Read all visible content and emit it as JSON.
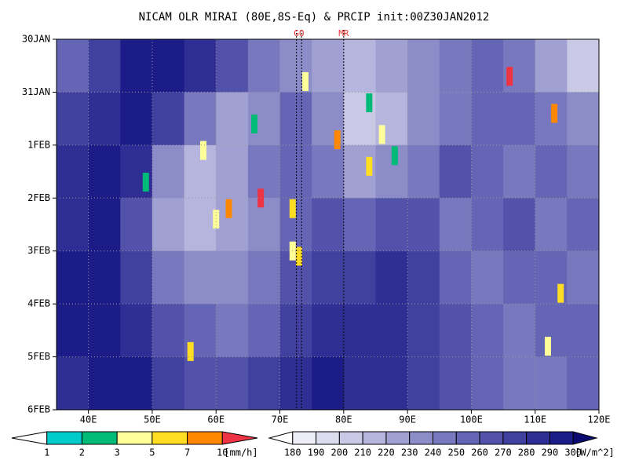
{
  "chart_data": {
    "type": "hovmoller",
    "title": "NICAM OLR MIRAI (80E,8S-Eq) & PRCIP init:00Z30JAN2012",
    "xlim": [
      35,
      120
    ],
    "ylim": [
      0,
      7
    ],
    "xticks": [
      {
        "value": 40,
        "label": "40E"
      },
      {
        "value": 50,
        "label": "50E"
      },
      {
        "value": 60,
        "label": "60E"
      },
      {
        "value": 70,
        "label": "70E"
      },
      {
        "value": 80,
        "label": "80E"
      },
      {
        "value": 90,
        "label": "90E"
      },
      {
        "value": 100,
        "label": "100E"
      },
      {
        "value": 110,
        "label": "110E"
      },
      {
        "value": 120,
        "label": "120E"
      }
    ],
    "yticks": [
      {
        "value": 0,
        "label": "30JAN"
      },
      {
        "value": 1,
        "label": "31JAN"
      },
      {
        "value": 2,
        "label": "1FEB"
      },
      {
        "value": 3,
        "label": "2FEB"
      },
      {
        "value": 4,
        "label": "3FEB"
      },
      {
        "value": 5,
        "label": "4FEB"
      },
      {
        "value": 6,
        "label": "5FEB"
      },
      {
        "value": 7,
        "label": "6FEB"
      }
    ],
    "grid": true,
    "olr": {
      "x_edges": [
        35,
        40,
        45,
        50,
        55,
        60,
        65,
        70,
        75,
        80,
        85,
        90,
        95,
        100,
        105,
        110,
        115,
        120
      ],
      "t_edges": [
        0,
        1,
        2,
        3,
        4,
        5,
        6,
        7
      ],
      "values": [
        [
          250,
          270,
          290,
          290,
          280,
          260,
          240,
          230,
          220,
          210,
          220,
          230,
          240,
          250,
          240,
          220,
          200
        ],
        [
          270,
          280,
          290,
          270,
          240,
          220,
          230,
          250,
          230,
          200,
          210,
          230,
          240,
          250,
          250,
          240,
          230
        ],
        [
          280,
          290,
          280,
          230,
          210,
          220,
          240,
          250,
          240,
          220,
          230,
          240,
          260,
          250,
          240,
          250,
          240
        ],
        [
          280,
          290,
          260,
          220,
          210,
          220,
          230,
          250,
          260,
          250,
          260,
          260,
          240,
          250,
          260,
          240,
          250
        ],
        [
          290,
          290,
          270,
          240,
          230,
          230,
          240,
          260,
          270,
          270,
          280,
          270,
          250,
          240,
          250,
          250,
          240
        ],
        [
          290,
          290,
          280,
          260,
          250,
          240,
          250,
          270,
          280,
          280,
          280,
          270,
          260,
          250,
          240,
          250,
          250
        ],
        [
          280,
          290,
          290,
          270,
          260,
          260,
          270,
          280,
          290,
          280,
          280,
          270,
          260,
          250,
          240,
          240,
          250
        ]
      ]
    },
    "precip": {
      "x": [
        62,
        67,
        72,
        73,
        74,
        79,
        84,
        86,
        88,
        106,
        113,
        56,
        60,
        49,
        72,
        84,
        66,
        112,
        114,
        58
      ],
      "t": [
        3.2,
        3.0,
        3.2,
        4.1,
        0.8,
        1.9,
        2.4,
        1.8,
        2.2,
        0.7,
        1.4,
        5.9,
        3.4,
        2.7,
        4.0,
        1.2,
        1.6,
        5.8,
        4.8,
        2.1
      ],
      "values": [
        7,
        10,
        5,
        5,
        3,
        7,
        5,
        3,
        2,
        10,
        7,
        5,
        3,
        2,
        3,
        2,
        2,
        3,
        5,
        3
      ]
    },
    "precip_colorbar": {
      "levels": [
        1,
        2,
        3,
        5,
        7,
        10
      ],
      "unit": "[mm/h]",
      "colors": [
        "#ffffff",
        "#00cccc",
        "#00bb77",
        "#ffff99",
        "#ffdd22",
        "#ff8800",
        "#ee3344"
      ]
    },
    "olr_colorbar": {
      "levels": [
        180,
        190,
        200,
        210,
        220,
        230,
        240,
        250,
        260,
        270,
        280,
        290,
        300
      ],
      "unit": "[W/m^2]",
      "colors": [
        "#ffffff",
        "#ededf7",
        "#dcdcef",
        "#c9c9e6",
        "#b5b5dd",
        "#a0a0d3",
        "#8c8cc9",
        "#7878bf",
        "#6565b5",
        "#5252aa",
        "#40409f",
        "#2e2e94",
        "#1c1c88",
        "#0a0a70"
      ]
    },
    "markers": [
      {
        "label": "GO",
        "x": [
          72.6,
          73.4
        ]
      },
      {
        "label": "MR",
        "x": [
          80
        ]
      }
    ]
  }
}
